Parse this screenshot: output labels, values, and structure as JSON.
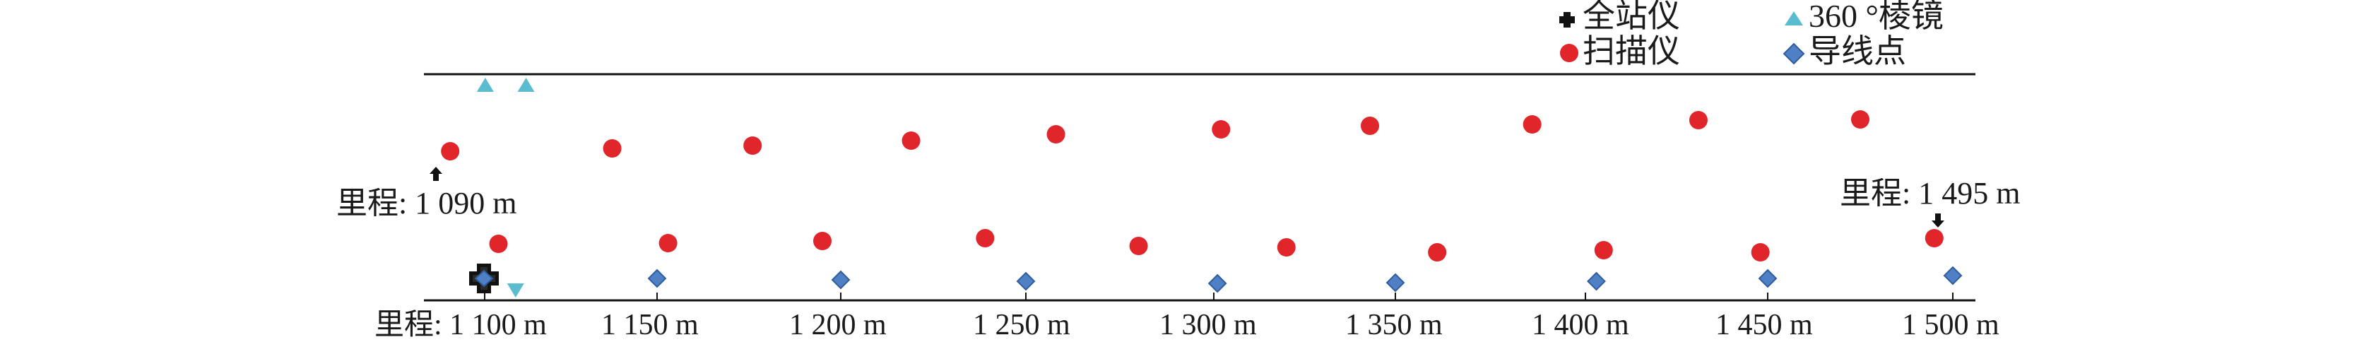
{
  "colors": {
    "scanner": "#e0252b",
    "prism": "#5bbccf",
    "traverse": "#4f7fc4",
    "traverse_stroke": "#2f5d9e",
    "station": "#111111",
    "line": "#111111"
  },
  "legend": {
    "total_station": "全站仪",
    "prism_360": "360 °棱镜",
    "scanner": "扫描仪",
    "traverse_point": "导线点"
  },
  "labels": {
    "mileage_start": "里程: 1 090 m",
    "mileage_end": "里程: 1 495 m"
  },
  "axis": {
    "prefix": "里程: ",
    "ticks": [
      "1 100 m",
      "1 150 m",
      "1 200 m",
      "1 250 m",
      "1 300 m",
      "1 350 m",
      "1 400 m",
      "1 450 m",
      "1 500 m"
    ]
  },
  "chart_data": {
    "type": "scatter",
    "x_unit": "m",
    "xlim": [
      1090,
      1500
    ],
    "series": [
      {
        "name": "扫描仪",
        "marker": "circle",
        "x": [
          1090,
          1137,
          1176,
          1219,
          1258,
          1302,
          1343,
          1386,
          1431,
          1475,
          1104,
          1153,
          1195,
          1239,
          1280,
          1320,
          1361,
          1405,
          1448,
          1495
        ]
      },
      {
        "name": "导线点",
        "marker": "diamond",
        "x": [
          1100,
          1150,
          1200,
          1250,
          1301,
          1350,
          1403,
          1450,
          1500
        ]
      },
      {
        "name": "360 °棱镜",
        "marker": "triangle",
        "x": [
          1101,
          1112,
          1102
        ]
      },
      {
        "name": "全站仪",
        "marker": "cross",
        "x": [
          1100
        ]
      }
    ]
  }
}
